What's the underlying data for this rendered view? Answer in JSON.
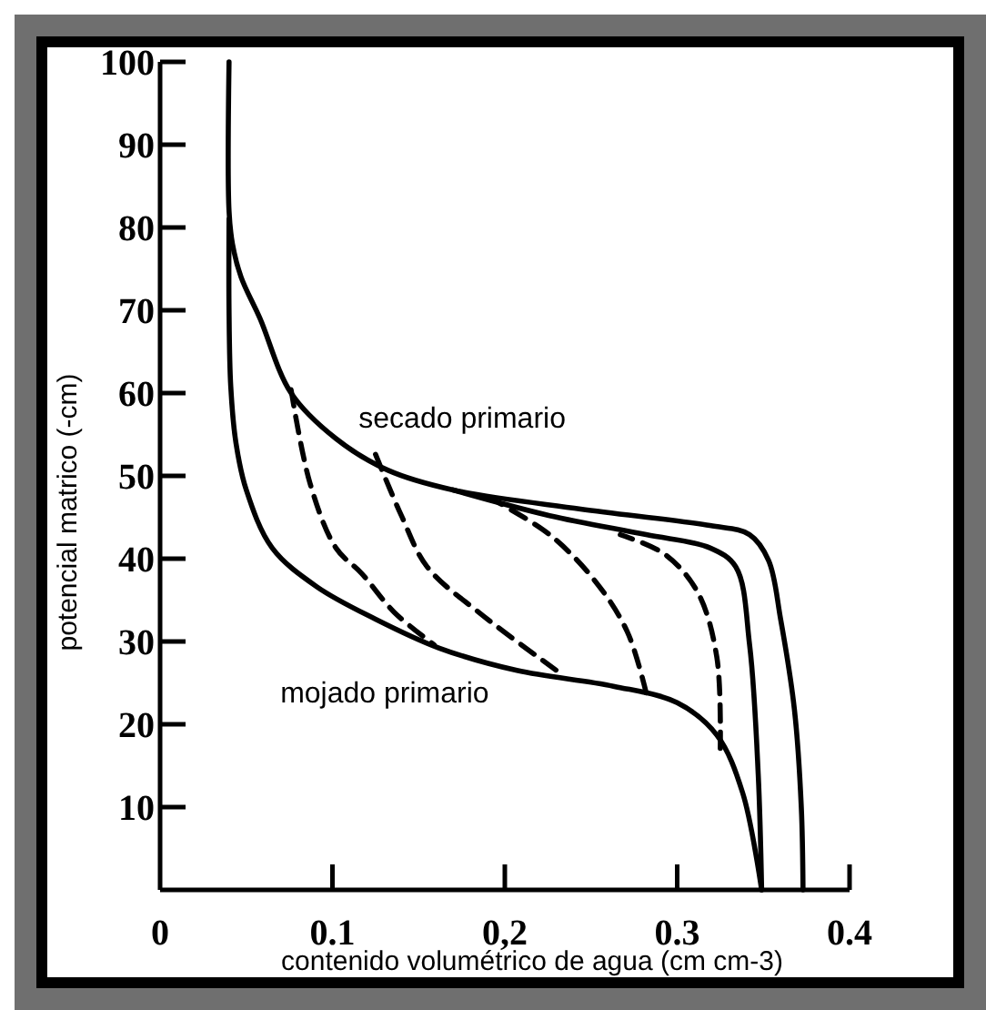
{
  "chart_data": {
    "type": "line",
    "xlabel": "contenido volumétrico de agua (cm cm-3)",
    "ylabel": "potencial matrico (-cm)",
    "xlim": [
      0,
      0.4
    ],
    "ylim": [
      0,
      100
    ],
    "xticks": [
      {
        "value": 0,
        "label": "0"
      },
      0.1,
      {
        "value": 0.2,
        "label": "0,2"
      },
      0.3,
      0.4
    ],
    "yticks": [
      10,
      20,
      30,
      40,
      50,
      60,
      70,
      80,
      90,
      100
    ],
    "grid": false,
    "marker": "none",
    "series": [
      {
        "name": "secado primario",
        "color": "#000000",
        "line_style": "solid",
        "x": [
          0.373,
          0.372,
          0.368,
          0.36,
          0.353,
          0.342,
          0.319,
          0.244,
          0.17,
          0.132,
          0.102,
          0.076,
          0.058,
          0.047,
          0.042,
          0.04,
          0.04
        ],
        "values": [
          0,
          10,
          21.8,
          32.7,
          39.8,
          42.9,
          44,
          46,
          48.3,
          50.7,
          54.5,
          60,
          69,
          74,
          78,
          82,
          100
        ]
      },
      {
        "name": "mojado primario",
        "color": "#000000",
        "line_style": "solid",
        "x": [
          0.04,
          0.04,
          0.041,
          0.044,
          0.05,
          0.065,
          0.091,
          0.125,
          0.162,
          0.207,
          0.263,
          0.3,
          0.323,
          0.338,
          0.349
        ],
        "values": [
          81,
          70,
          60.8,
          54,
          48.3,
          41.3,
          36.6,
          32.7,
          29.2,
          26.5,
          24.6,
          22.6,
          18.7,
          11.7,
          0
        ]
      },
      {
        "color": "#000000",
        "line_style": "solid",
        "x": [
          0.349,
          0.347,
          0.342,
          0.334,
          0.319,
          0.282,
          0.226,
          0.17
        ],
        "values": [
          0,
          14,
          29.6,
          39,
          41.3,
          42.9,
          45.2,
          48.3
        ]
      },
      {
        "color": "#000000",
        "line_style": "dashed",
        "x": [
          0.076,
          0.087,
          0.102,
          0.117,
          0.136,
          0.159
        ],
        "values": [
          60.4,
          49.1,
          41.3,
          38.2,
          33.5,
          29.6
        ]
      },
      {
        "color": "#000000",
        "line_style": "dashed",
        "x": [
          0.125,
          0.14,
          0.155,
          0.185,
          0.23
        ],
        "values": [
          52.6,
          45.2,
          39,
          33.5,
          26.5
        ]
      },
      {
        "color": "#000000",
        "line_style": "dashed",
        "x": [
          0.282,
          0.271,
          0.252,
          0.226,
          0.196
        ],
        "values": [
          23.8,
          31.2,
          37.4,
          42.9,
          46.8
        ]
      },
      {
        "color": "#000000",
        "line_style": "dashed",
        "x": [
          0.325,
          0.323,
          0.312,
          0.293,
          0.267
        ],
        "values": [
          17.1,
          28.1,
          35.9,
          40.5,
          42.9
        ]
      }
    ]
  }
}
